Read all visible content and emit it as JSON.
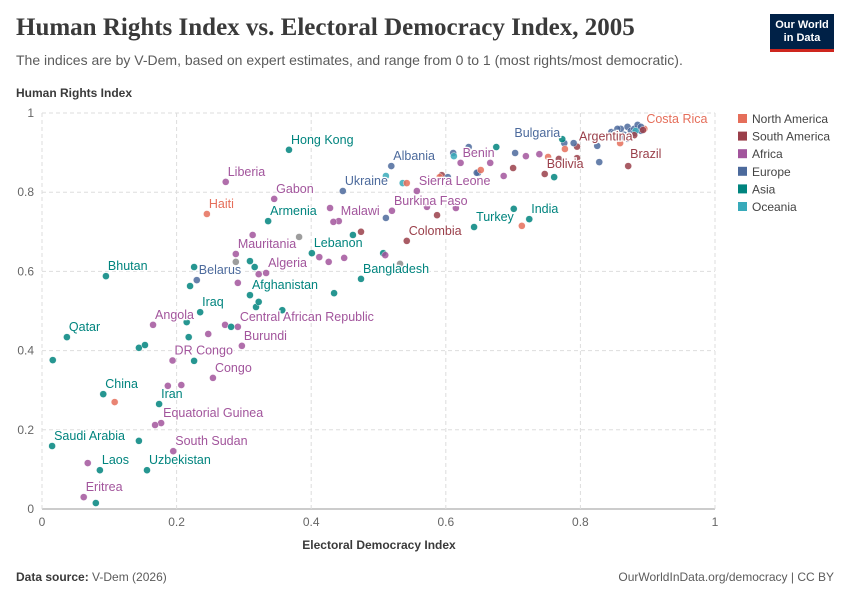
{
  "header": {
    "title": "Human Rights Index vs. Electoral Democracy Index, 2005",
    "subtitle": "The indices are by V-Dem, based on expert estimates, and range from 0 to 1 (most rights/most democratic).",
    "logo_text": "Our World in Data"
  },
  "footer": {
    "source_label": "Data source:",
    "source": "V-Dem (2026)",
    "link": "OurWorldInData.org/democracy | CC BY"
  },
  "chart_data": {
    "type": "scatter",
    "title": "Human Rights Index vs. Electoral Democracy Index, 2005",
    "xlabel": "Electoral Democracy Index",
    "ylabel": "Human Rights Index",
    "xlim": [
      0,
      1
    ],
    "ylim": [
      0,
      1
    ],
    "xticks": [
      "0",
      "0.2",
      "0.4",
      "0.6",
      "0.8",
      "1"
    ],
    "yticks": [
      "0",
      "0.2",
      "0.4",
      "0.6",
      "0.8",
      "1"
    ],
    "grid": true,
    "legend_position": "right",
    "legend": [
      "North America",
      "South America",
      "Africa",
      "Europe",
      "Asia",
      "Oceania"
    ],
    "region_colors": {
      "North America": "#E56E5A",
      "South America": "#9A3F4A",
      "Africa": "#A2559C",
      "Europe": "#4C6A9C",
      "Asia": "#00847E",
      "Oceania": "#38AABA",
      "Other": "#8c8c8c"
    },
    "points": [
      {
        "x": 0.895,
        "y": 0.96,
        "region": "North America",
        "label": "Costa Rica"
      },
      {
        "x": 0.795,
        "y": 0.915,
        "region": "South America",
        "label": "Argentina"
      },
      {
        "x": 0.871,
        "y": 0.866,
        "region": "South America",
        "label": "Brazil"
      },
      {
        "x": 0.747,
        "y": 0.846,
        "region": "South America",
        "label": "Bolivia"
      },
      {
        "x": 0.776,
        "y": 0.924,
        "region": "Europe",
        "label": "Bulgaria"
      },
      {
        "x": 0.724,
        "y": 0.732,
        "region": "Asia",
        "label": "India"
      },
      {
        "x": 0.642,
        "y": 0.712,
        "region": "Asia",
        "label": "Turkey"
      },
      {
        "x": 0.622,
        "y": 0.874,
        "region": "Africa",
        "label": "Benin"
      },
      {
        "x": 0.557,
        "y": 0.803,
        "region": "Africa",
        "label": "Sierra Leone"
      },
      {
        "x": 0.52,
        "y": 0.753,
        "region": "Africa",
        "label": "Burkina Faso"
      },
      {
        "x": 0.542,
        "y": 0.677,
        "region": "South America",
        "label": "Colombia"
      },
      {
        "x": 0.519,
        "y": 0.866,
        "region": "Europe",
        "label": "Albania"
      },
      {
        "x": 0.447,
        "y": 0.803,
        "region": "Europe",
        "label": "Ukraine"
      },
      {
        "x": 0.441,
        "y": 0.727,
        "region": "Africa",
        "label": "Malawi"
      },
      {
        "x": 0.367,
        "y": 0.907,
        "region": "Asia",
        "label": "Hong Kong"
      },
      {
        "x": 0.273,
        "y": 0.826,
        "region": "Africa",
        "label": "Liberia"
      },
      {
        "x": 0.345,
        "y": 0.783,
        "region": "Africa",
        "label": "Gabon"
      },
      {
        "x": 0.245,
        "y": 0.745,
        "region": "North America",
        "label": "Haiti"
      },
      {
        "x": 0.336,
        "y": 0.727,
        "region": "Asia",
        "label": "Armenia"
      },
      {
        "x": 0.288,
        "y": 0.644,
        "region": "Africa",
        "label": "Mauritania"
      },
      {
        "x": 0.401,
        "y": 0.646,
        "region": "Asia",
        "label": "Lebanon"
      },
      {
        "x": 0.474,
        "y": 0.581,
        "region": "Asia",
        "label": "Bangladesh"
      },
      {
        "x": 0.333,
        "y": 0.596,
        "region": "Africa",
        "label": "Algeria"
      },
      {
        "x": 0.23,
        "y": 0.578,
        "region": "Europe",
        "label": "Belarus"
      },
      {
        "x": 0.309,
        "y": 0.54,
        "region": "Asia",
        "label": "Afghanistan"
      },
      {
        "x": 0.095,
        "y": 0.588,
        "region": "Asia",
        "label": "Bhutan"
      },
      {
        "x": 0.235,
        "y": 0.497,
        "region": "Asia",
        "label": "Iraq"
      },
      {
        "x": 0.165,
        "y": 0.465,
        "region": "Africa",
        "label": "Angola"
      },
      {
        "x": 0.291,
        "y": 0.46,
        "region": "Africa",
        "label": "Central African Republic"
      },
      {
        "x": 0.037,
        "y": 0.434,
        "region": "Asia",
        "label": "Qatar"
      },
      {
        "x": 0.297,
        "y": 0.412,
        "region": "Africa",
        "label": "Burundi"
      },
      {
        "x": 0.194,
        "y": 0.375,
        "region": "Africa",
        "label": "DR Congo"
      },
      {
        "x": 0.254,
        "y": 0.331,
        "region": "Africa",
        "label": "Congo"
      },
      {
        "x": 0.091,
        "y": 0.29,
        "region": "Asia",
        "label": "China"
      },
      {
        "x": 0.174,
        "y": 0.265,
        "region": "Asia",
        "label": "Iran"
      },
      {
        "x": 0.177,
        "y": 0.217,
        "region": "Africa",
        "label": "Equatorial Guinea"
      },
      {
        "x": 0.015,
        "y": 0.159,
        "region": "Asia",
        "label": "Saudi Arabia"
      },
      {
        "x": 0.195,
        "y": 0.146,
        "region": "Africa",
        "label": "South Sudan"
      },
      {
        "x": 0.086,
        "y": 0.098,
        "region": "Asia",
        "label": "Laos"
      },
      {
        "x": 0.156,
        "y": 0.098,
        "region": "Asia",
        "label": "Uzbekistan"
      },
      {
        "x": 0.062,
        "y": 0.03,
        "region": "Africa",
        "label": "Eritrea"
      },
      {
        "x": 0.068,
        "y": 0.116,
        "region": "Africa"
      },
      {
        "x": 0.08,
        "y": 0.015,
        "region": "Asia"
      },
      {
        "x": 0.144,
        "y": 0.172,
        "region": "Asia"
      },
      {
        "x": 0.108,
        "y": 0.27,
        "region": "North America"
      },
      {
        "x": 0.187,
        "y": 0.311,
        "region": "Africa"
      },
      {
        "x": 0.207,
        "y": 0.313,
        "region": "Africa"
      },
      {
        "x": 0.168,
        "y": 0.212,
        "region": "Africa"
      },
      {
        "x": 0.226,
        "y": 0.374,
        "region": "Asia"
      },
      {
        "x": 0.218,
        "y": 0.434,
        "region": "Asia"
      },
      {
        "x": 0.144,
        "y": 0.407,
        "region": "Asia"
      },
      {
        "x": 0.153,
        "y": 0.414,
        "region": "Asia"
      },
      {
        "x": 0.016,
        "y": 0.376,
        "region": "Asia"
      },
      {
        "x": 0.247,
        "y": 0.442,
        "region": "Africa"
      },
      {
        "x": 0.272,
        "y": 0.465,
        "region": "Africa"
      },
      {
        "x": 0.281,
        "y": 0.46,
        "region": "Asia"
      },
      {
        "x": 0.215,
        "y": 0.472,
        "region": "Asia"
      },
      {
        "x": 0.318,
        "y": 0.51,
        "region": "Asia"
      },
      {
        "x": 0.322,
        "y": 0.523,
        "region": "Asia"
      },
      {
        "x": 0.357,
        "y": 0.502,
        "region": "Asia"
      },
      {
        "x": 0.291,
        "y": 0.571,
        "region": "Africa"
      },
      {
        "x": 0.22,
        "y": 0.563,
        "region": "Asia"
      },
      {
        "x": 0.226,
        "y": 0.611,
        "region": "Asia"
      },
      {
        "x": 0.288,
        "y": 0.624,
        "region": "Other"
      },
      {
        "x": 0.309,
        "y": 0.626,
        "region": "Asia"
      },
      {
        "x": 0.316,
        "y": 0.611,
        "region": "Asia"
      },
      {
        "x": 0.322,
        "y": 0.593,
        "region": "Africa"
      },
      {
        "x": 0.434,
        "y": 0.545,
        "region": "Asia"
      },
      {
        "x": 0.412,
        "y": 0.636,
        "region": "Africa"
      },
      {
        "x": 0.426,
        "y": 0.624,
        "region": "Africa"
      },
      {
        "x": 0.449,
        "y": 0.634,
        "region": "Africa"
      },
      {
        "x": 0.313,
        "y": 0.692,
        "region": "Africa"
      },
      {
        "x": 0.382,
        "y": 0.687,
        "region": "Other"
      },
      {
        "x": 0.428,
        "y": 0.76,
        "region": "Africa"
      },
      {
        "x": 0.433,
        "y": 0.725,
        "region": "Africa"
      },
      {
        "x": 0.462,
        "y": 0.692,
        "region": "Asia"
      },
      {
        "x": 0.474,
        "y": 0.7,
        "region": "South America"
      },
      {
        "x": 0.507,
        "y": 0.646,
        "region": "Asia"
      },
      {
        "x": 0.51,
        "y": 0.641,
        "region": "Africa"
      },
      {
        "x": 0.532,
        "y": 0.619,
        "region": "Other"
      },
      {
        "x": 0.511,
        "y": 0.735,
        "region": "Europe"
      },
      {
        "x": 0.511,
        "y": 0.841,
        "region": "Oceania"
      },
      {
        "x": 0.536,
        "y": 0.823,
        "region": "Oceania"
      },
      {
        "x": 0.542,
        "y": 0.823,
        "region": "North America"
      },
      {
        "x": 0.594,
        "y": 0.843,
        "region": "South America"
      },
      {
        "x": 0.591,
        "y": 0.838,
        "region": "North America"
      },
      {
        "x": 0.603,
        "y": 0.838,
        "region": "Europe"
      },
      {
        "x": 0.572,
        "y": 0.763,
        "region": "Africa"
      },
      {
        "x": 0.587,
        "y": 0.742,
        "region": "South America"
      },
      {
        "x": 0.615,
        "y": 0.76,
        "region": "Africa"
      },
      {
        "x": 0.634,
        "y": 0.914,
        "region": "Europe"
      },
      {
        "x": 0.611,
        "y": 0.899,
        "region": "Europe"
      },
      {
        "x": 0.612,
        "y": 0.891,
        "region": "Oceania"
      },
      {
        "x": 0.648,
        "y": 0.849,
        "region": "Europe"
      },
      {
        "x": 0.675,
        "y": 0.914,
        "region": "Asia"
      },
      {
        "x": 0.703,
        "y": 0.899,
        "region": "Europe"
      },
      {
        "x": 0.719,
        "y": 0.891,
        "region": "Africa"
      },
      {
        "x": 0.739,
        "y": 0.896,
        "region": "Africa"
      },
      {
        "x": 0.752,
        "y": 0.889,
        "region": "North America"
      },
      {
        "x": 0.768,
        "y": 0.884,
        "region": "South America"
      },
      {
        "x": 0.795,
        "y": 0.886,
        "region": "South America"
      },
      {
        "x": 0.777,
        "y": 0.909,
        "region": "North America"
      },
      {
        "x": 0.773,
        "y": 0.934,
        "region": "Asia"
      },
      {
        "x": 0.79,
        "y": 0.924,
        "region": "Europe"
      },
      {
        "x": 0.666,
        "y": 0.874,
        "region": "Africa"
      },
      {
        "x": 0.646,
        "y": 0.849,
        "region": "Europe"
      },
      {
        "x": 0.652,
        "y": 0.856,
        "region": "North America"
      },
      {
        "x": 0.686,
        "y": 0.841,
        "region": "Africa"
      },
      {
        "x": 0.7,
        "y": 0.861,
        "region": "South America"
      },
      {
        "x": 0.761,
        "y": 0.838,
        "region": "Asia"
      },
      {
        "x": 0.828,
        "y": 0.876,
        "region": "Europe"
      },
      {
        "x": 0.859,
        "y": 0.924,
        "region": "North America"
      },
      {
        "x": 0.846,
        "y": 0.952,
        "region": "Europe"
      },
      {
        "x": 0.701,
        "y": 0.758,
        "region": "Asia"
      },
      {
        "x": 0.713,
        "y": 0.715,
        "region": "North America"
      },
      {
        "x": 0.825,
        "y": 0.917,
        "region": "Europe"
      },
      {
        "x": 0.85,
        "y": 0.95,
        "region": "Europe"
      },
      {
        "x": 0.86,
        "y": 0.96,
        "region": "Europe"
      },
      {
        "x": 0.865,
        "y": 0.945,
        "region": "Europe"
      },
      {
        "x": 0.87,
        "y": 0.965,
        "region": "Europe"
      },
      {
        "x": 0.875,
        "y": 0.955,
        "region": "Europe"
      },
      {
        "x": 0.88,
        "y": 0.96,
        "region": "Europe"
      },
      {
        "x": 0.885,
        "y": 0.97,
        "region": "Europe"
      },
      {
        "x": 0.89,
        "y": 0.955,
        "region": "Europe"
      },
      {
        "x": 0.86,
        "y": 0.94,
        "region": "Europe"
      },
      {
        "x": 0.87,
        "y": 0.935,
        "region": "Europe"
      },
      {
        "x": 0.88,
        "y": 0.95,
        "region": "Europe"
      },
      {
        "x": 0.89,
        "y": 0.965,
        "region": "Europe"
      },
      {
        "x": 0.855,
        "y": 0.96,
        "region": "Europe"
      },
      {
        "x": 0.882,
        "y": 0.955,
        "region": "Oceania"
      },
      {
        "x": 0.893,
        "y": 0.957,
        "region": "South America"
      },
      {
        "x": 0.88,
        "y": 0.944,
        "region": "South America"
      }
    ]
  }
}
